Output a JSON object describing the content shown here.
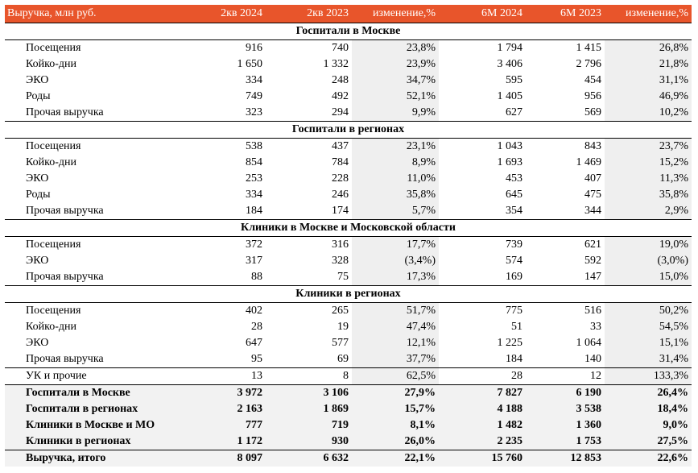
{
  "headers": [
    "Выручка, млн руб.",
    "2кв 2024",
    "2кв 2023",
    "изменение,%",
    "6М 2024",
    "6М 2023",
    "изменение,%"
  ],
  "sections": [
    {
      "title": "Госпитали в Москве",
      "rows": [
        [
          "Посещения",
          "916",
          "740",
          "23,8%",
          "1 794",
          "1 415",
          "26,8%"
        ],
        [
          "Койко-дни",
          "1 650",
          "1 332",
          "23,9%",
          "3 406",
          "2 796",
          "21,8%"
        ],
        [
          "ЭКО",
          "334",
          "248",
          "34,7%",
          "595",
          "454",
          "31,1%"
        ],
        [
          "Роды",
          "749",
          "492",
          "52,1%",
          "1 405",
          "956",
          "46,9%"
        ],
        [
          "Прочая выручка",
          "323",
          "294",
          "9,9%",
          "627",
          "569",
          "10,2%"
        ]
      ]
    },
    {
      "title": "Госпитали в регионах",
      "rows": [
        [
          "Посещения",
          "538",
          "437",
          "23,1%",
          "1 043",
          "843",
          "23,7%"
        ],
        [
          "Койко-дни",
          "854",
          "784",
          "8,9%",
          "1 693",
          "1 469",
          "15,2%"
        ],
        [
          "ЭКО",
          "253",
          "228",
          "11,0%",
          "453",
          "407",
          "11,3%"
        ],
        [
          "Роды",
          "334",
          "246",
          "35,8%",
          "645",
          "475",
          "35,8%"
        ],
        [
          "Прочая выручка",
          "184",
          "174",
          "5,7%",
          "354",
          "344",
          "2,9%"
        ]
      ]
    },
    {
      "title": "Клиники в Москве и Московской области",
      "rows": [
        [
          "Посещения",
          "372",
          "316",
          "17,7%",
          "739",
          "621",
          "19,0%"
        ],
        [
          "ЭКО",
          "317",
          "328",
          "(3,4%)",
          "574",
          "592",
          "(3,0%)"
        ],
        [
          "Прочая выручка",
          "88",
          "75",
          "17,3%",
          "169",
          "147",
          "15,0%"
        ]
      ]
    },
    {
      "title": "Клиники в регионах",
      "rows": [
        [
          "Посещения",
          "402",
          "265",
          "51,7%",
          "775",
          "516",
          "50,2%"
        ],
        [
          "Койко-дни",
          "28",
          "19",
          "47,4%",
          "51",
          "33",
          "54,5%"
        ],
        [
          "ЭКО",
          "647",
          "577",
          "12,1%",
          "1 225",
          "1 064",
          "15,1%"
        ],
        [
          "Прочая выручка",
          "95",
          "69",
          "37,7%",
          "184",
          "140",
          "31,4%"
        ]
      ]
    }
  ],
  "uk_row": [
    "УК и прочие",
    "13",
    "8",
    "62,5%",
    "28",
    "12",
    "133,3%"
  ],
  "totals": [
    [
      "Госпитали в Москве",
      "3 972",
      "3 106",
      "27,9%",
      "7 827",
      "6 190",
      "26,4%"
    ],
    [
      "Госпитали в регионах",
      "2 163",
      "1 869",
      "15,7%",
      "4 188",
      "3 538",
      "18,4%"
    ],
    [
      "Клиники в Москве и МО",
      "777",
      "719",
      "8,1%",
      "1 482",
      "1 360",
      "9,0%"
    ],
    [
      "Клиники в регионах",
      "1 172",
      "930",
      "26,0%",
      "2 235",
      "1 753",
      "27,5%"
    ]
  ],
  "grand_total": [
    "Выручка, итого",
    "8 097",
    "6 632",
    "22,1%",
    "15 760",
    "12 853",
    "22,6%"
  ],
  "colors": {
    "header_bg": "#e8552b",
    "header_text": "#ffffff",
    "shade": "#efefef"
  }
}
